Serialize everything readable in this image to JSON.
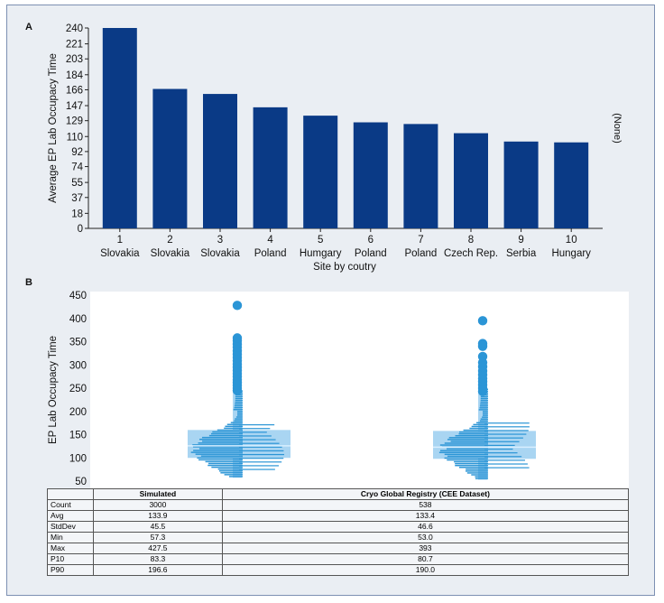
{
  "panel_a": {
    "letter": "A",
    "chart_data": {
      "type": "bar",
      "categories": [
        "1",
        "2",
        "3",
        "4",
        "5",
        "6",
        "7",
        "8",
        "9",
        "10"
      ],
      "countries": [
        "Slovakia",
        "Slovakia",
        "Slovakia",
        "Poland",
        "Humgary",
        "Poland",
        "Poland",
        "Czech Rep.",
        "Serbia",
        "Hungary"
      ],
      "values": [
        240,
        167,
        161,
        145,
        135,
        127,
        125,
        114,
        104,
        103
      ],
      "yticks": [
        "0",
        "18",
        "37",
        "55",
        "74",
        "92",
        "110",
        "129",
        "147",
        "166",
        "184",
        "203",
        "221",
        "240"
      ],
      "ylim": [
        0,
        240
      ],
      "ylabel": "Average EP Lab Occupacy Time",
      "xlabel": "Site by coutry",
      "side_label": "(None)",
      "bar_color": "#0a3a86"
    }
  },
  "panel_b": {
    "letter": "B",
    "chart_data": {
      "type": "violin",
      "ylabel": "EP Lab Occupacy Time",
      "yticks": [
        "50",
        "100",
        "150",
        "200",
        "250",
        "300",
        "350",
        "400",
        "450"
      ],
      "ylim": [
        50,
        450
      ],
      "series": [
        {
          "name": "Simulated",
          "min": 57.3,
          "p10": 83.3,
          "median": 126,
          "mean": 133.9,
          "p90": 196.6,
          "max": 427.5,
          "box": [
            100,
            160
          ],
          "outliers": [
            245,
            250,
            256,
            262,
            268,
            275,
            281,
            288,
            295,
            302,
            309,
            316,
            323,
            330,
            338,
            345,
            352,
            358,
            428
          ]
        },
        {
          "name": "Cryo Global Registry (CEE Dataset)",
          "min": 53.0,
          "p10": 80.7,
          "median": 123,
          "mean": 133.4,
          "p90": 190.0,
          "max": 393,
          "box": [
            98,
            158
          ],
          "outliers": [
            243,
            250,
            257,
            264,
            271,
            279,
            287,
            296,
            305,
            318,
            340,
            346,
            395
          ]
        }
      ],
      "color": "#2b95d6",
      "box_color": "#a9d5f2"
    },
    "table": {
      "columns": [
        "Simulated",
        "Cryo Global Registry (CEE Dataset)"
      ],
      "rows": [
        {
          "label": "Count",
          "values": [
            "3000",
            "538"
          ]
        },
        {
          "label": "Avg",
          "values": [
            "133.9",
            "133.4"
          ]
        },
        {
          "label": "StdDev",
          "values": [
            "45.5",
            "46.6"
          ]
        },
        {
          "label": "Min",
          "values": [
            "57.3",
            "53.0"
          ]
        },
        {
          "label": "Max",
          "values": [
            "427.5",
            "393"
          ]
        },
        {
          "label": "P10",
          "values": [
            "83.3",
            "80.7"
          ]
        },
        {
          "label": "P90",
          "values": [
            "196.6",
            "190.0"
          ]
        }
      ]
    }
  }
}
